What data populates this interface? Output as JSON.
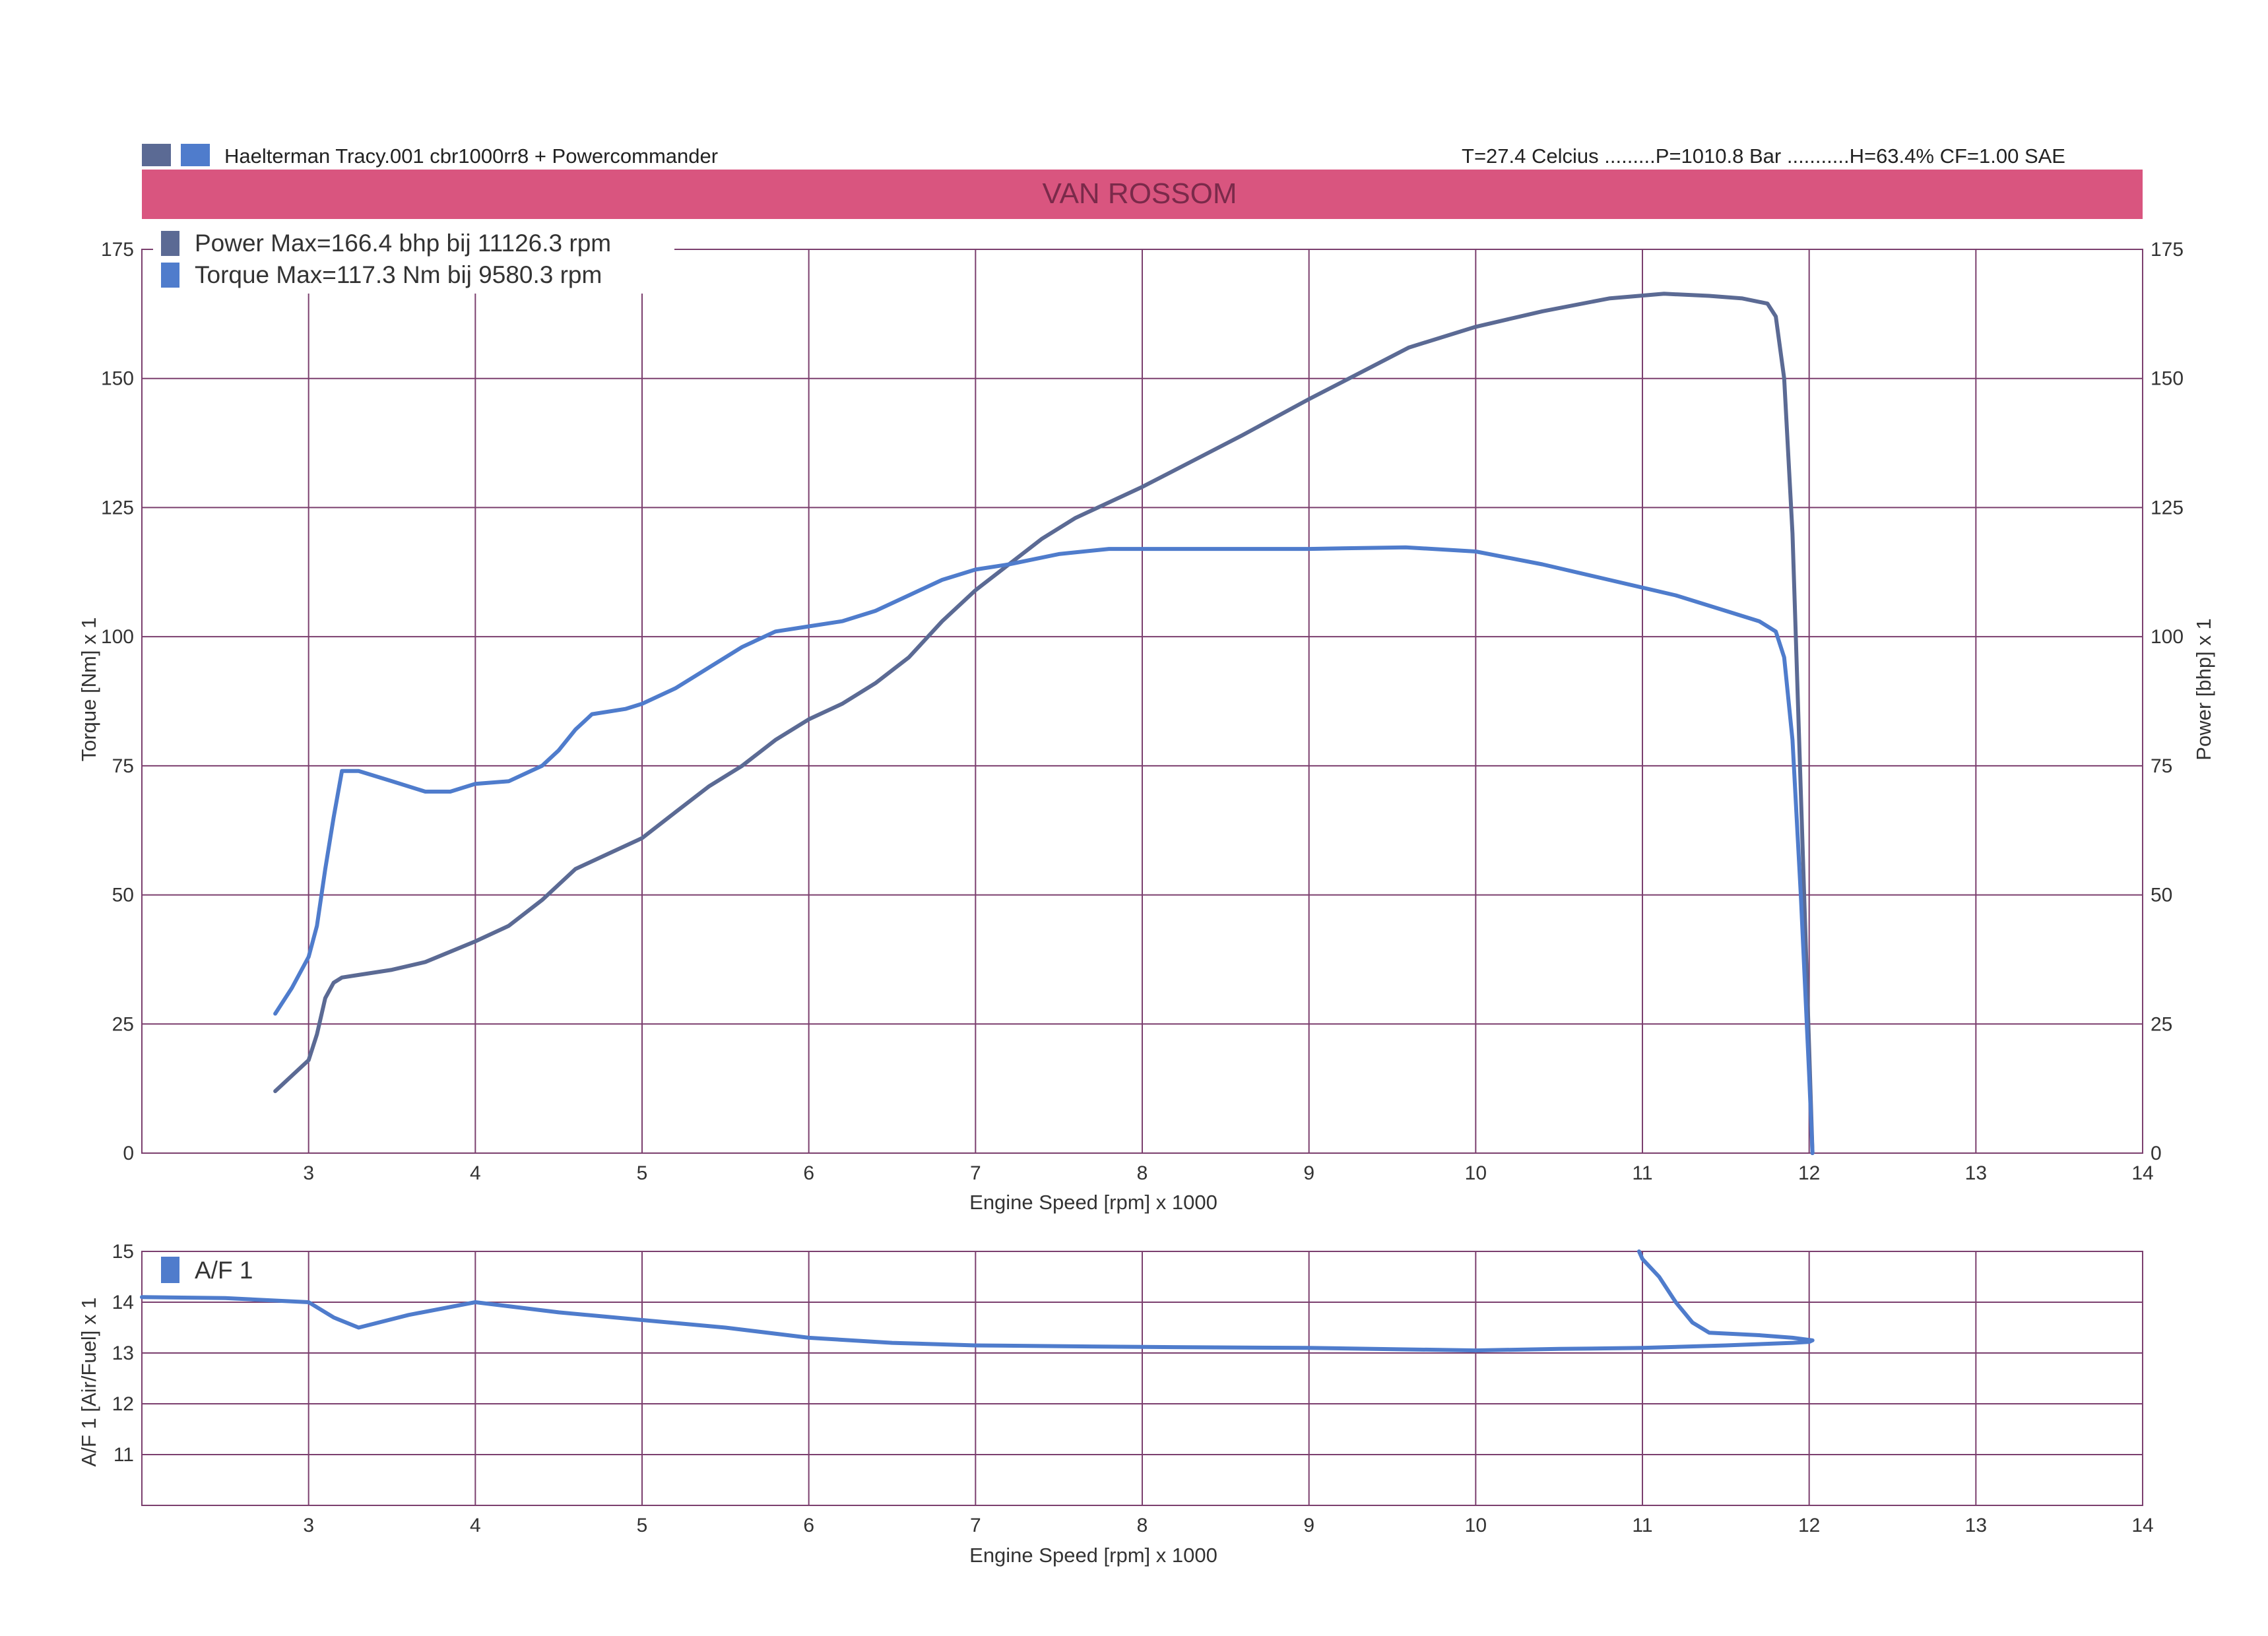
{
  "header": {
    "left_text": "Haelterman Tracy.001 cbr1000rr8  + Powercommander",
    "right_text": "T=27.4 Celcius .........P=1010.8 Bar ...........H=63.4% CF=1.00 SAE",
    "banner": "VAN ROSSOM"
  },
  "colors": {
    "banner": "#d9557f",
    "grid": "#7b3f6e",
    "power": "#5b6a94",
    "torque": "#4f7ccc",
    "af": "#4f7ccc"
  },
  "chart_data": [
    {
      "type": "line",
      "xlabel": "Engine Speed [rpm] x 1000",
      "ylabel": "Torque [Nm] x 1",
      "ylabel_right": "Power [bhp] x 1",
      "xlim": [
        2,
        14
      ],
      "ylim": [
        0,
        175
      ],
      "ylim_right": [
        0,
        175
      ],
      "x_ticks": [
        "3",
        "4",
        "5",
        "6",
        "7",
        "8",
        "9",
        "10",
        "11",
        "12",
        "13",
        "14"
      ],
      "y_ticks": [
        "0",
        "25",
        "50",
        "75",
        "100",
        "125",
        "150",
        "175"
      ],
      "y_ticks_right": [
        "0",
        "25",
        "50",
        "75",
        "100",
        "125",
        "150",
        "175"
      ],
      "grid": true,
      "legend_placement": "top-left",
      "series": [
        {
          "name": "Power Max=166.4 bhp bij 11126.3 rpm",
          "color": "#5b6a94",
          "x": [
            2.8,
            2.9,
            3.0,
            3.05,
            3.1,
            3.15,
            3.2,
            3.3,
            3.5,
            3.7,
            3.85,
            4.0,
            4.2,
            4.4,
            4.6,
            4.8,
            5.0,
            5.2,
            5.4,
            5.6,
            5.8,
            6.0,
            6.2,
            6.4,
            6.6,
            6.8,
            7.0,
            7.2,
            7.4,
            7.6,
            7.8,
            8.0,
            8.3,
            8.6,
            9.0,
            9.3,
            9.6,
            10.0,
            10.4,
            10.8,
            11.13,
            11.4,
            11.6,
            11.75,
            11.8,
            11.85,
            11.9,
            11.95,
            12.0,
            12.02
          ],
          "y": [
            12,
            15,
            18,
            23,
            30,
            33,
            34,
            34.5,
            35.5,
            37,
            39,
            41,
            44,
            49,
            55,
            58,
            61,
            66,
            71,
            75,
            80,
            84,
            87,
            91,
            96,
            103,
            109,
            114,
            119,
            123,
            126,
            129,
            134,
            139,
            146,
            151,
            156,
            160,
            163,
            165.5,
            166.4,
            166,
            165.5,
            164.5,
            162,
            150,
            120,
            70,
            20,
            0
          ]
        },
        {
          "name": "Torque  Max=117.3 Nm bij 9580.3 rpm",
          "color": "#4f7ccc",
          "x": [
            2.8,
            2.9,
            3.0,
            3.05,
            3.1,
            3.15,
            3.2,
            3.3,
            3.5,
            3.7,
            3.85,
            4.0,
            4.2,
            4.4,
            4.5,
            4.6,
            4.7,
            4.9,
            5.0,
            5.2,
            5.4,
            5.6,
            5.8,
            6.0,
            6.2,
            6.4,
            6.6,
            6.8,
            7.0,
            7.2,
            7.5,
            7.8,
            8.2,
            8.6,
            9.0,
            9.58,
            10.0,
            10.4,
            10.8,
            11.2,
            11.5,
            11.7,
            11.8,
            11.85,
            11.9,
            11.95,
            12.0,
            12.02
          ],
          "y": [
            27,
            32,
            38,
            44,
            55,
            65,
            74,
            74,
            72,
            70,
            70,
            71.5,
            72,
            75,
            78,
            82,
            85,
            86,
            87,
            90,
            94,
            98,
            101,
            102,
            103,
            105,
            108,
            111,
            113,
            114,
            116,
            117,
            117,
            117,
            117,
            117.3,
            116.5,
            114,
            111,
            108,
            105,
            103,
            101,
            96,
            80,
            50,
            15,
            0
          ]
        }
      ]
    },
    {
      "type": "line",
      "xlabel": "Engine Speed [rpm] x 1000",
      "ylabel": "A/F 1 [Air/Fuel] x 1",
      "xlim": [
        2,
        14
      ],
      "ylim": [
        10,
        15
      ],
      "x_ticks": [
        "3",
        "4",
        "5",
        "6",
        "7",
        "8",
        "9",
        "10",
        "11",
        "12",
        "13",
        "14"
      ],
      "y_ticks": [
        "11",
        "12",
        "13",
        "14",
        "15"
      ],
      "grid": true,
      "legend_placement": "top-left",
      "series": [
        {
          "name": "A/F 1",
          "color": "#4f7ccc",
          "x": [
            2.0,
            2.5,
            3.0,
            3.15,
            3.3,
            3.6,
            4.0,
            4.5,
            5.0,
            5.5,
            6.0,
            6.5,
            7.0,
            8.0,
            9.0,
            10.0,
            10.5,
            11.0,
            11.5,
            11.9,
            12.0,
            12.02,
            11.9,
            11.7,
            11.4,
            11.3,
            11.2,
            11.1,
            11.0,
            10.98
          ],
          "y": [
            14.1,
            14.08,
            14.0,
            13.7,
            13.5,
            13.75,
            14.0,
            13.8,
            13.65,
            13.5,
            13.3,
            13.2,
            13.15,
            13.12,
            13.1,
            13.05,
            13.08,
            13.1,
            13.15,
            13.2,
            13.22,
            13.25,
            13.3,
            13.35,
            13.4,
            13.6,
            14.0,
            14.5,
            14.85,
            15.0
          ]
        }
      ]
    }
  ]
}
